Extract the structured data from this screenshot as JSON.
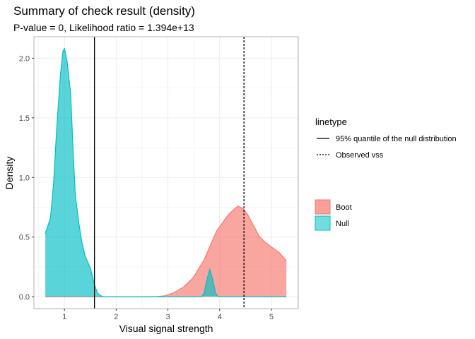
{
  "chart_data": {
    "type": "area",
    "title": "Summary of check result (density)",
    "subtitle": "P-value = 0, Likelihood ratio = 1.394e+13",
    "xlabel": "Visual signal strength",
    "ylabel": "Density",
    "xlim": [
      0.41,
      5.52
    ],
    "ylim": [
      -0.1,
      2.18
    ],
    "x_ticks": [
      "1",
      "2",
      "3",
      "4",
      "5"
    ],
    "y_ticks": [
      "0.0",
      "0.5",
      "1.0",
      "1.5",
      "2.0"
    ],
    "grid": true,
    "series": [
      {
        "name": "Boot",
        "color": "#F8766D",
        "points": [
          [
            0.63,
            0
          ],
          [
            2.5,
            0
          ],
          [
            2.8,
            0.002
          ],
          [
            2.94,
            0.008
          ],
          [
            3.1,
            0.03
          ],
          [
            3.3,
            0.08
          ],
          [
            3.49,
            0.16
          ],
          [
            3.7,
            0.31
          ],
          [
            3.94,
            0.55
          ],
          [
            4.17,
            0.69
          ],
          [
            4.35,
            0.76
          ],
          [
            4.45,
            0.74
          ],
          [
            4.54,
            0.69
          ],
          [
            4.65,
            0.6
          ],
          [
            4.76,
            0.51
          ],
          [
            4.87,
            0.46
          ],
          [
            4.99,
            0.42
          ],
          [
            5.15,
            0.37
          ],
          [
            5.29,
            0.3
          ]
        ]
      },
      {
        "name": "Null",
        "color": "#00BFC4",
        "points": [
          [
            0.63,
            0.53
          ],
          [
            0.73,
            0.66
          ],
          [
            0.79,
            0.95
          ],
          [
            0.85,
            1.41
          ],
          [
            0.92,
            1.85
          ],
          [
            0.97,
            2.06
          ],
          [
            1.0,
            2.08
          ],
          [
            1.05,
            1.98
          ],
          [
            1.12,
            1.7
          ],
          [
            1.17,
            1.2
          ],
          [
            1.21,
            0.85
          ],
          [
            1.28,
            0.61
          ],
          [
            1.34,
            0.45
          ],
          [
            1.4,
            0.34
          ],
          [
            1.5,
            0.24
          ],
          [
            1.58,
            0.1
          ],
          [
            1.64,
            0.03
          ],
          [
            1.69,
            0.01
          ],
          [
            1.75,
            0
          ],
          [
            3.65,
            0
          ],
          [
            3.7,
            0.03
          ],
          [
            3.75,
            0.14
          ],
          [
            3.81,
            0.23
          ],
          [
            3.87,
            0.14
          ],
          [
            3.92,
            0.03
          ],
          [
            3.97,
            0
          ],
          [
            5.29,
            0
          ]
        ]
      }
    ],
    "vlines": [
      {
        "x": 1.58,
        "linetype": "solid",
        "label": "95% quantile of the null distribution"
      },
      {
        "x": 4.47,
        "linetype": "dotted",
        "label": "Observed vss"
      }
    ],
    "legend": {
      "placement": "right",
      "linetype_title": "linetype",
      "fill_entries": [
        "Boot",
        "Null"
      ]
    }
  }
}
